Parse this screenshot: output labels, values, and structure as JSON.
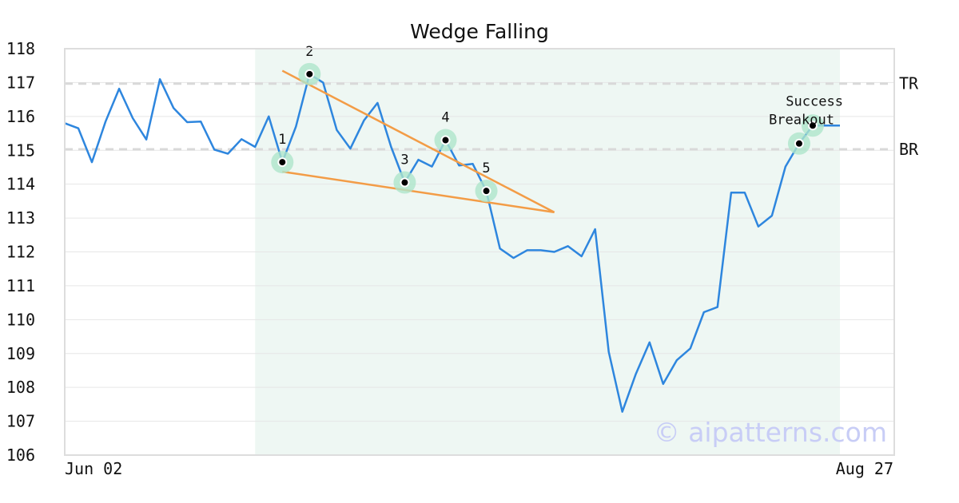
{
  "chart_data": {
    "type": "line",
    "title": "Wedge Falling",
    "xlabel": "",
    "ylabel": "",
    "ylim": [
      106,
      118
    ],
    "yticks": [
      106,
      107,
      108,
      109,
      110,
      111,
      112,
      113,
      114,
      115,
      116,
      117,
      118
    ],
    "x_tick_labels": [
      "Jun 02",
      "Aug 27"
    ],
    "grid": "horizontal",
    "series": [
      {
        "color": "#2e86de",
        "values": [
          115.8,
          115.65,
          114.65,
          115.85,
          116.82,
          115.95,
          115.32,
          117.1,
          116.25,
          115.83,
          115.85,
          115.02,
          114.9,
          115.33,
          115.1,
          116.0,
          114.65,
          115.7,
          117.25,
          117.0,
          115.6,
          115.05,
          115.88,
          116.4,
          115.1,
          114.05,
          114.72,
          114.52,
          115.3,
          114.55,
          114.6,
          113.8,
          112.1,
          111.82,
          112.05,
          112.05,
          112.0,
          112.17,
          111.87,
          112.67,
          109.05,
          107.28,
          108.4,
          109.33,
          108.1,
          108.8,
          109.15,
          110.22,
          110.37,
          113.75,
          113.75,
          112.75,
          113.07,
          114.52,
          115.2,
          115.73,
          115.73,
          115.73
        ]
      }
    ],
    "highlight_region": {
      "x_start": 14,
      "x_end": 57,
      "color": "#eef7f3"
    },
    "levels": [
      {
        "label": "TR",
        "value": 116.97
      },
      {
        "label": "BR",
        "value": 115.03
      }
    ],
    "trendlines": [
      {
        "color": "#f39c46",
        "x1": 16,
        "y1": 117.35,
        "x2": 36,
        "y2": 113.17
      },
      {
        "color": "#f39c46",
        "x1": 16,
        "y1": 114.37,
        "x2": 36,
        "y2": 113.17
      }
    ],
    "pivots": [
      {
        "label": "1",
        "x": 16,
        "y": 114.65
      },
      {
        "label": "2",
        "x": 18,
        "y": 117.25
      },
      {
        "label": "3",
        "x": 25,
        "y": 114.05
      },
      {
        "label": "4",
        "x": 28,
        "y": 115.3
      },
      {
        "label": "5",
        "x": 31,
        "y": 113.8
      }
    ],
    "breakout_points": [
      {
        "label": "Breakout",
        "x": 54,
        "y": 115.2
      },
      {
        "label": "Success",
        "x": 55,
        "y": 115.73
      }
    ],
    "marker_halo_color": "#aee5cb",
    "watermark": "© aipatterns.com"
  }
}
